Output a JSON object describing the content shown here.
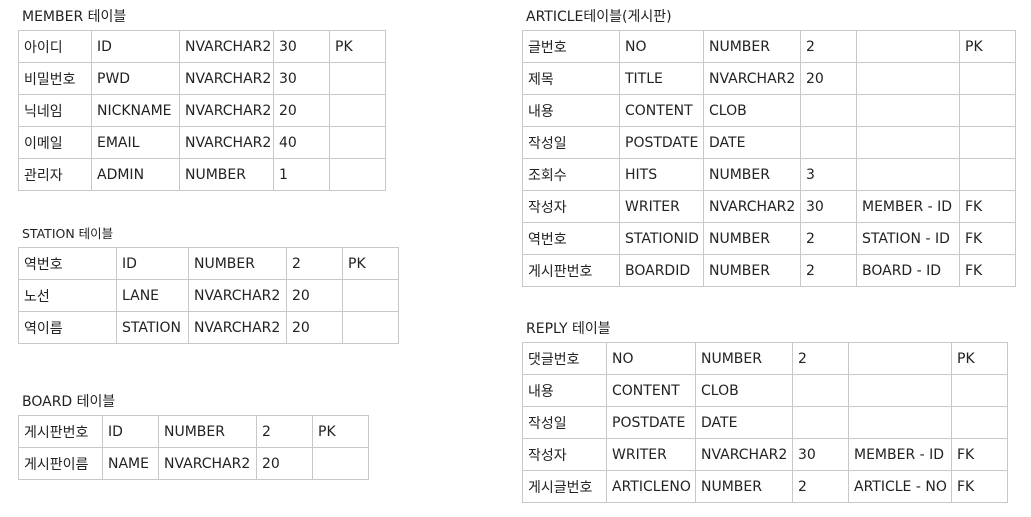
{
  "member": {
    "title": "MEMBER 테이블",
    "rows": [
      [
        "아이디",
        "ID",
        "NVARCHAR2",
        "30",
        "PK"
      ],
      [
        "비밀번호",
        "PWD",
        "NVARCHAR2",
        "30",
        ""
      ],
      [
        "닉네임",
        "NICKNAME",
        "NVARCHAR2",
        "20",
        ""
      ],
      [
        "이메일",
        "EMAIL",
        "NVARCHAR2",
        "40",
        ""
      ],
      [
        "관리자",
        "ADMIN",
        "NUMBER",
        "1",
        ""
      ]
    ]
  },
  "station": {
    "title": "STATION 테이블",
    "rows": [
      [
        "역번호",
        "ID",
        "NUMBER",
        "2",
        "PK"
      ],
      [
        "노선",
        "LANE",
        "NVARCHAR2",
        "20",
        ""
      ],
      [
        "역이름",
        "STATION",
        "NVARCHAR2",
        "20",
        ""
      ]
    ]
  },
  "board": {
    "title": "BOARD 테이블",
    "rows": [
      [
        "게시판번호",
        "ID",
        "NUMBER",
        "2",
        "PK"
      ],
      [
        "게시판이름",
        "NAME",
        "NVARCHAR2",
        "20",
        ""
      ]
    ]
  },
  "article": {
    "title": "ARTICLE테이블(게시판)",
    "rows": [
      [
        "글번호",
        "NO",
        "NUMBER",
        "2",
        "",
        "PK"
      ],
      [
        "제목",
        "TITLE",
        "NVARCHAR2",
        "20",
        "",
        ""
      ],
      [
        "내용",
        "CONTENT",
        "CLOB",
        "",
        "",
        ""
      ],
      [
        "작성일",
        "POSTDATE",
        "DATE",
        "",
        "",
        ""
      ],
      [
        "조회수",
        "HITS",
        "NUMBER",
        "3",
        "",
        ""
      ],
      [
        "작성자",
        "WRITER",
        "NVARCHAR2",
        "30",
        "MEMBER - ID",
        "FK"
      ],
      [
        "역번호",
        "STATIONID",
        "NUMBER",
        "2",
        "STATION - ID",
        "FK"
      ],
      [
        "게시판번호",
        "BOARDID",
        "NUMBER",
        "2",
        "BOARD - ID",
        "FK"
      ]
    ]
  },
  "reply": {
    "title": "REPLY 테이블",
    "rows": [
      [
        "댓글번호",
        "NO",
        "NUMBER",
        "2",
        "",
        "PK"
      ],
      [
        "내용",
        "CONTENT",
        "CLOB",
        "",
        "",
        ""
      ],
      [
        "작성일",
        "POSTDATE",
        "DATE",
        "",
        "",
        ""
      ],
      [
        "작성자",
        "WRITER",
        "NVARCHAR2",
        "30",
        "MEMBER - ID",
        "FK"
      ],
      [
        "게시글번호",
        "ARTICLENO",
        "NUMBER",
        "2",
        "ARTICLE - NO",
        "FK"
      ]
    ]
  }
}
